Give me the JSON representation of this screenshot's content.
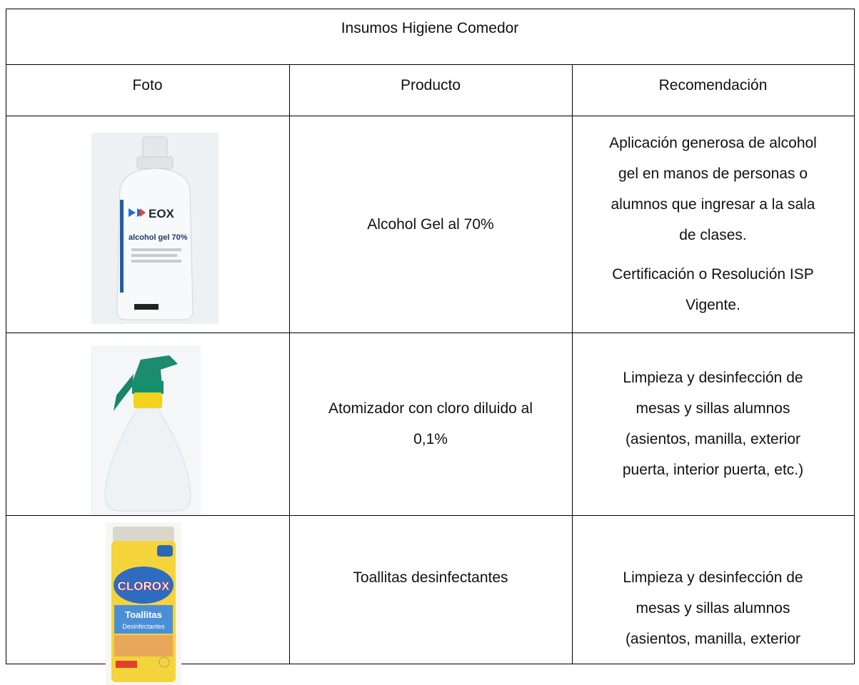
{
  "table": {
    "title": "Insumos Higiene Comedor",
    "headers": [
      "Foto",
      "Producto",
      "Recomendación"
    ],
    "rows": [
      {
        "photo_labels": [
          "EOX",
          "alcohol gel 70%"
        ],
        "product": [
          "Alcohol Gel al 70%"
        ],
        "recommendation": [
          [
            "Aplicación generosa de alcohol",
            "gel en manos de personas o",
            "alumnos que ingresar a la sala",
            "de clases."
          ],
          [
            "Certificación o Resolución ISP",
            "Vigente."
          ]
        ]
      },
      {
        "photo_labels": [],
        "product": [
          "Atomizador con cloro diluido al",
          "0,1%"
        ],
        "recommendation": [
          [
            "Limpieza y desinfección de",
            "mesas y sillas alumnos",
            "(asientos, manilla, exterior",
            "puerta, interior puerta, etc.)"
          ]
        ]
      },
      {
        "photo_labels": [
          "CLOROX",
          "Toallitas",
          "Desinfectantes"
        ],
        "product": [
          "Toallitas desinfectantes"
        ],
        "recommendation": [
          [
            "Limpieza y desinfección de",
            "mesas y sillas alumnos",
            "(asientos, manilla, exterior"
          ]
        ]
      }
    ]
  }
}
